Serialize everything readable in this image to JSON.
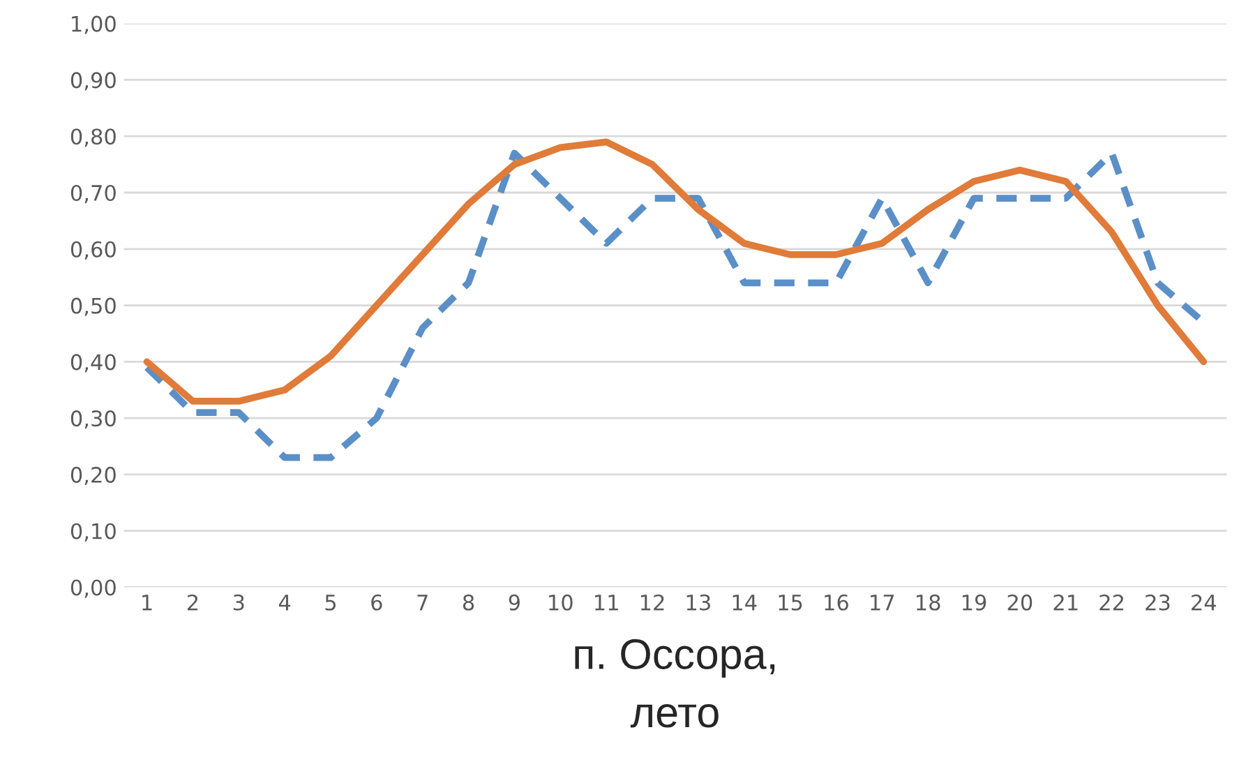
{
  "chart_data": {
    "type": "line",
    "xlabel": "п. Оссора,\nлето",
    "categories": [
      "1",
      "2",
      "3",
      "4",
      "5",
      "6",
      "7",
      "8",
      "9",
      "10",
      "11",
      "12",
      "13",
      "14",
      "15",
      "16",
      "17",
      "18",
      "19",
      "20",
      "21",
      "22",
      "23",
      "24"
    ],
    "series": [
      {
        "color": "#5b8fc7",
        "line_style": "dashed",
        "values": [
          0.39,
          0.31,
          0.31,
          0.23,
          0.23,
          0.3,
          0.46,
          0.54,
          0.77,
          0.69,
          0.61,
          0.69,
          0.69,
          0.54,
          0.54,
          0.54,
          0.69,
          0.54,
          0.69,
          0.69,
          0.69,
          0.77,
          0.54,
          0.47
        ]
      },
      {
        "color": "#e07b39",
        "line_style": "solid",
        "values": [
          0.4,
          0.33,
          0.33,
          0.35,
          0.41,
          0.5,
          0.59,
          0.68,
          0.75,
          0.78,
          0.79,
          0.75,
          0.67,
          0.61,
          0.59,
          0.59,
          0.61,
          0.67,
          0.72,
          0.74,
          0.72,
          0.63,
          0.5,
          0.4
        ]
      }
    ],
    "ylim": [
      0,
      1
    ],
    "yticks": [
      {
        "value": 0,
        "label": "0,00"
      },
      {
        "value": 0.1,
        "label": "0,10"
      },
      {
        "value": 0.2,
        "label": "0,20"
      },
      {
        "value": 0.3,
        "label": "0,30"
      },
      {
        "value": 0.4,
        "label": "0,40"
      },
      {
        "value": 0.5,
        "label": "0,50"
      },
      {
        "value": 0.6,
        "label": "0,60"
      },
      {
        "value": 0.7,
        "label": "0,70"
      },
      {
        "value": 0.8,
        "label": "0,80"
      },
      {
        "value": 0.9,
        "label": "0,90"
      },
      {
        "value": 1,
        "label": "1,00"
      }
    ],
    "grid": "y"
  }
}
